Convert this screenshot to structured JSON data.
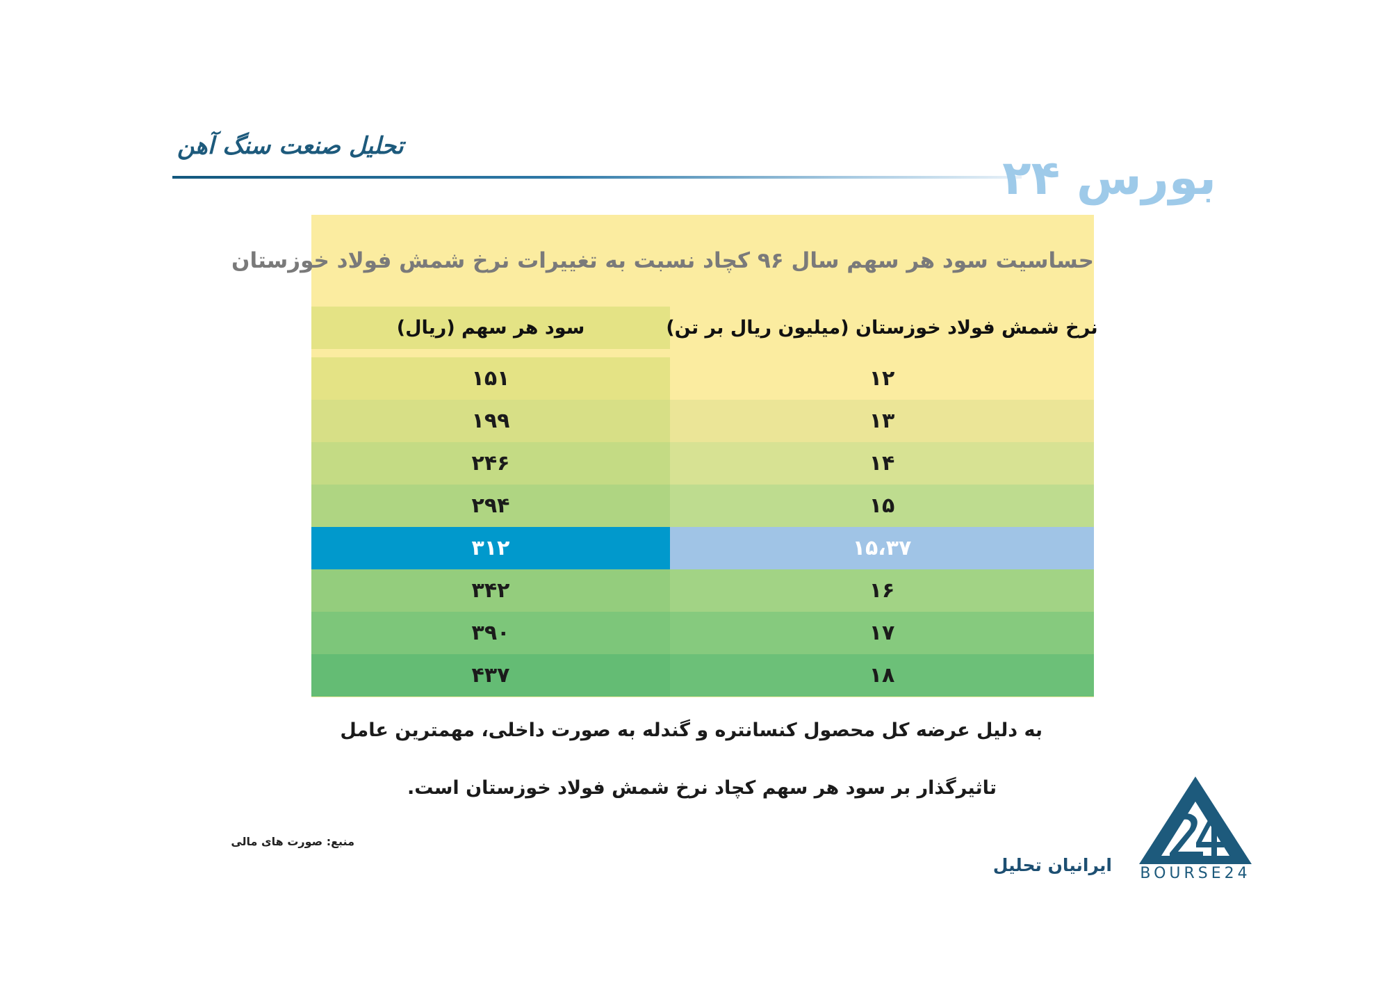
{
  "header": {
    "section_title": "تحلیل صنعت سنگ آهن",
    "logo_wordmark": "بورس ۲۴"
  },
  "table": {
    "title": "حساسیت سود هر سهم سال ۹۶ کچاد نسبت به تغییرات نرخ شمش فولاد خوزستان",
    "columns": {
      "left": "سود هر سهم (ریال)",
      "right": "نرخ شمش فولاد خوزستان (میلیون ریال بر تن)"
    },
    "rows": [
      {
        "eps": "۱۵۱",
        "rate": "۱۲"
      },
      {
        "eps": "۱۹۹",
        "rate": "۱۳"
      },
      {
        "eps": "۲۴۶",
        "rate": "۱۴"
      },
      {
        "eps": "۲۹۴",
        "rate": "۱۵"
      },
      {
        "eps": "۳۱۲",
        "rate": "۱۵،۳۷"
      },
      {
        "eps": "۳۴۲",
        "rate": "۱۶"
      },
      {
        "eps": "۳۹۰",
        "rate": "۱۷"
      },
      {
        "eps": "۴۳۷",
        "rate": "۱۸"
      }
    ],
    "highlighted_row": 4
  },
  "description": {
    "line1": "به دلیل عرضه کل محصول کنسانتره و گندله به صورت داخلی، مهمترین عامل",
    "line2": "تاثیرگذار بر سود هر سهم کچاد نرخ شمش فولاد خوزستان است."
  },
  "footer": {
    "source": "منبع: صورت های مالی",
    "firm_name": "ایرانیان تحلیل",
    "logo_caption": "BOURSE24"
  },
  "colors": {
    "panel": "#fbeca0",
    "highlight_left": "#0199cc",
    "highlight_right": "#a0c4e6",
    "brand": "#1d5a7c"
  }
}
